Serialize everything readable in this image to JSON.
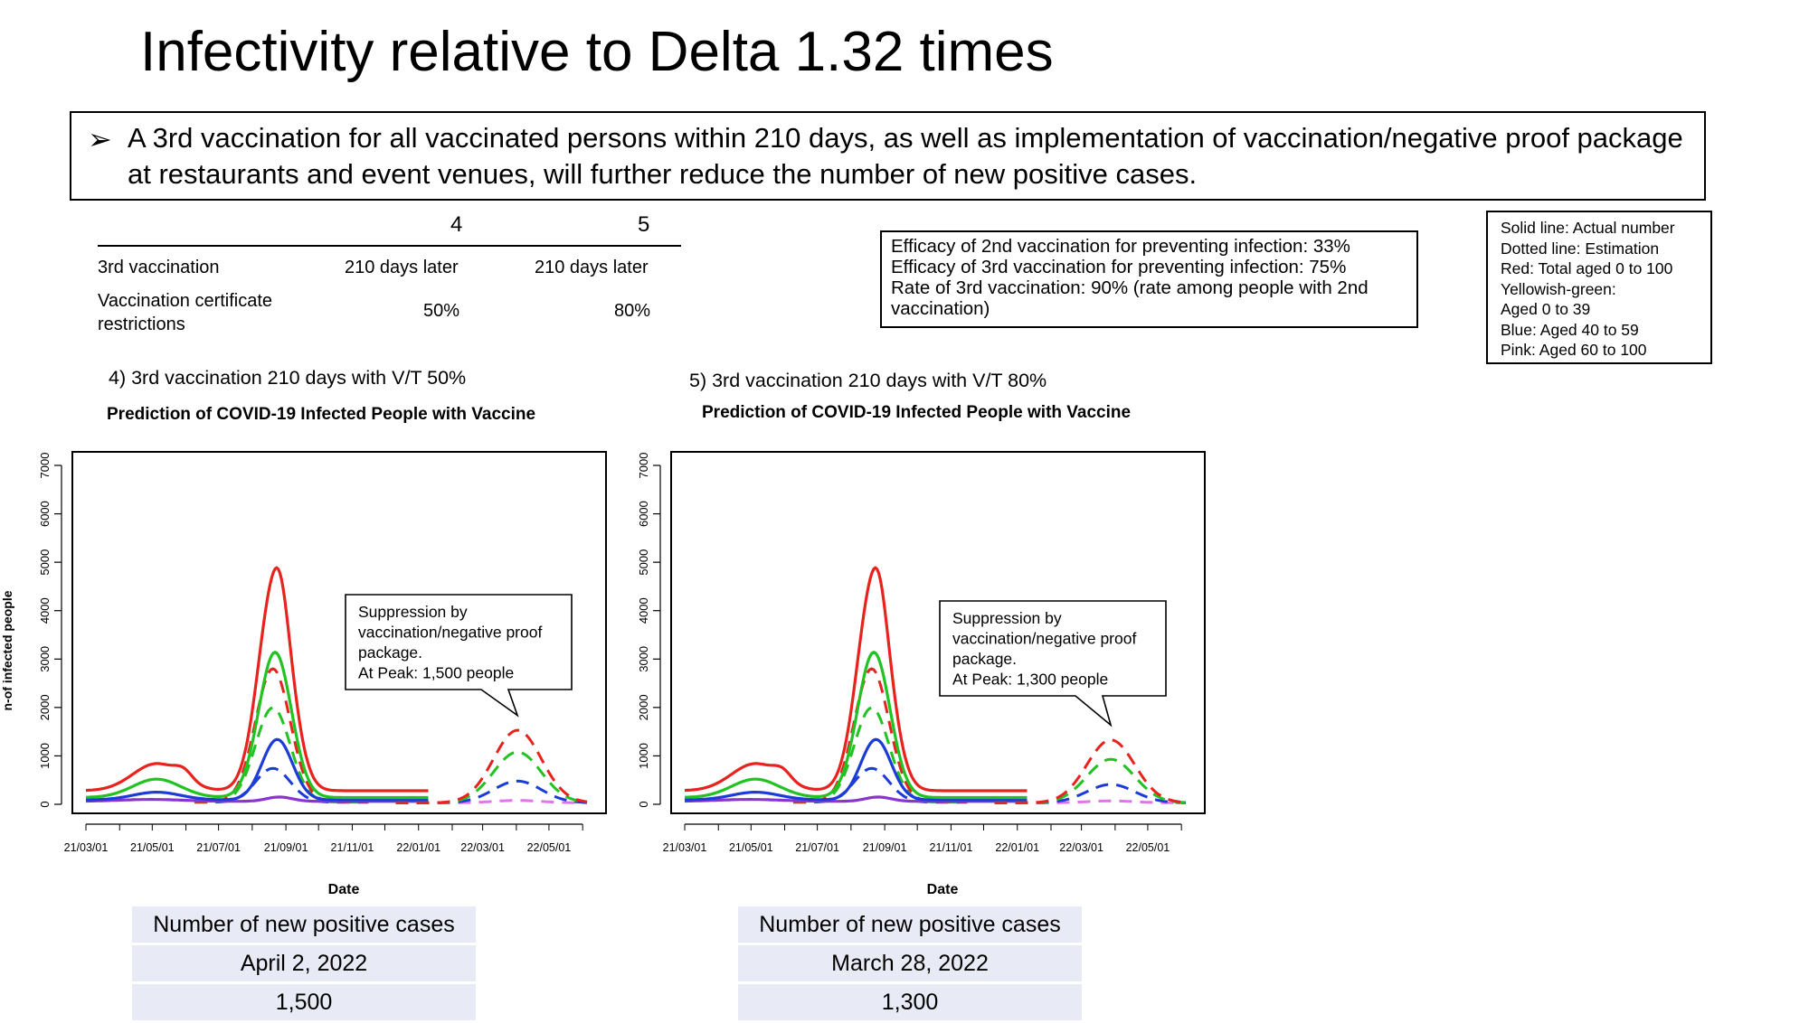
{
  "title": "Infectivity relative to Delta 1.32 times",
  "bullet": {
    "arrow": "➢",
    "text": "A 3rd vaccination for all vaccinated persons within 210 days, as well as implementation of vaccination/negative proof package at restaurants and event venues, will further reduce the number of new positive cases."
  },
  "settings_table": {
    "headers": [
      "4",
      "5"
    ],
    "rows": [
      {
        "label": "3rd vaccination",
        "values": [
          "210 days later",
          "210 days later"
        ]
      },
      {
        "label": "Vaccination certificate restrictions",
        "values": [
          "50%",
          "80%"
        ]
      }
    ]
  },
  "efficacy": [
    "Efficacy of 2nd vaccination for preventing infection: 33%",
    "Efficacy of 3rd vaccination for preventing infection: 75%",
    "Rate of 3rd vaccination: 90% (rate among people with 2nd vaccination)"
  ],
  "legend": [
    "Solid line: Actual number",
    "Dotted line: Estimation",
    "Red: Total aged 0 to 100",
    "Yellowish-green:",
    "Aged 0 to 39",
    "Blue: Aged 40 to 59",
    "Pink: Aged 60 to 100"
  ],
  "colors": {
    "red": "#e8221d",
    "green": "#21c221",
    "blue": "#1c3cd8",
    "purple": "#8a35d0",
    "pink": "#e074e8",
    "table_bg": "#e8ebf5"
  },
  "chart_data": [
    {
      "type": "line",
      "subtitle": "4) 3rd vaccination 210 days with V/T 50%",
      "title": "Prediction of COVID-19 Infected People with Vaccine",
      "xlabel": "Date",
      "ylabel": "n-of infected people",
      "xticks": [
        "21/03/01",
        "21/05/01",
        "21/07/01",
        "21/09/01",
        "21/11/01",
        "22/01/01",
        "22/03/01",
        "22/05/01"
      ],
      "yticks": [
        0,
        1000,
        2000,
        3000,
        4000,
        5000,
        6000,
        7000
      ],
      "ylim": [
        0,
        7000
      ],
      "actual_x_range": [
        "2021-03-01",
        "2022-01-10"
      ],
      "peak_date": "2022-04-02",
      "peak_values": {
        "red": 1500,
        "green": 1050,
        "blue": 450,
        "pink": 50
      },
      "callout": [
        "Suppression by",
        "vaccination/negative proof",
        "package.",
        "At Peak: 1,500 people"
      ],
      "summary": [
        "Number of new positive cases",
        "April 2, 2022",
        "1,500"
      ]
    },
    {
      "type": "line",
      "subtitle": "5) 3rd vaccination 210 days with V/T 80%",
      "title": "Prediction of COVID-19 Infected People with Vaccine",
      "xlabel": "Date",
      "ylabel": "",
      "xticks": [
        "21/03/01",
        "21/05/01",
        "21/07/01",
        "21/09/01",
        "21/11/01",
        "22/01/01",
        "22/03/01",
        "22/05/01"
      ],
      "yticks": [
        0,
        1000,
        2000,
        3000,
        4000,
        5000,
        6000,
        7000
      ],
      "ylim": [
        0,
        7000
      ],
      "actual_x_range": [
        "2021-03-01",
        "2022-01-10"
      ],
      "peak_date": "2022-03-28",
      "peak_values": {
        "red": 1300,
        "green": 900,
        "blue": 380,
        "pink": 40
      },
      "callout": [
        "Suppression by",
        "vaccination/negative proof",
        "package.",
        "At Peak: 1,300 people"
      ],
      "summary": [
        "Number of new positive cases",
        "March 28, 2022",
        "1,300"
      ]
    }
  ]
}
